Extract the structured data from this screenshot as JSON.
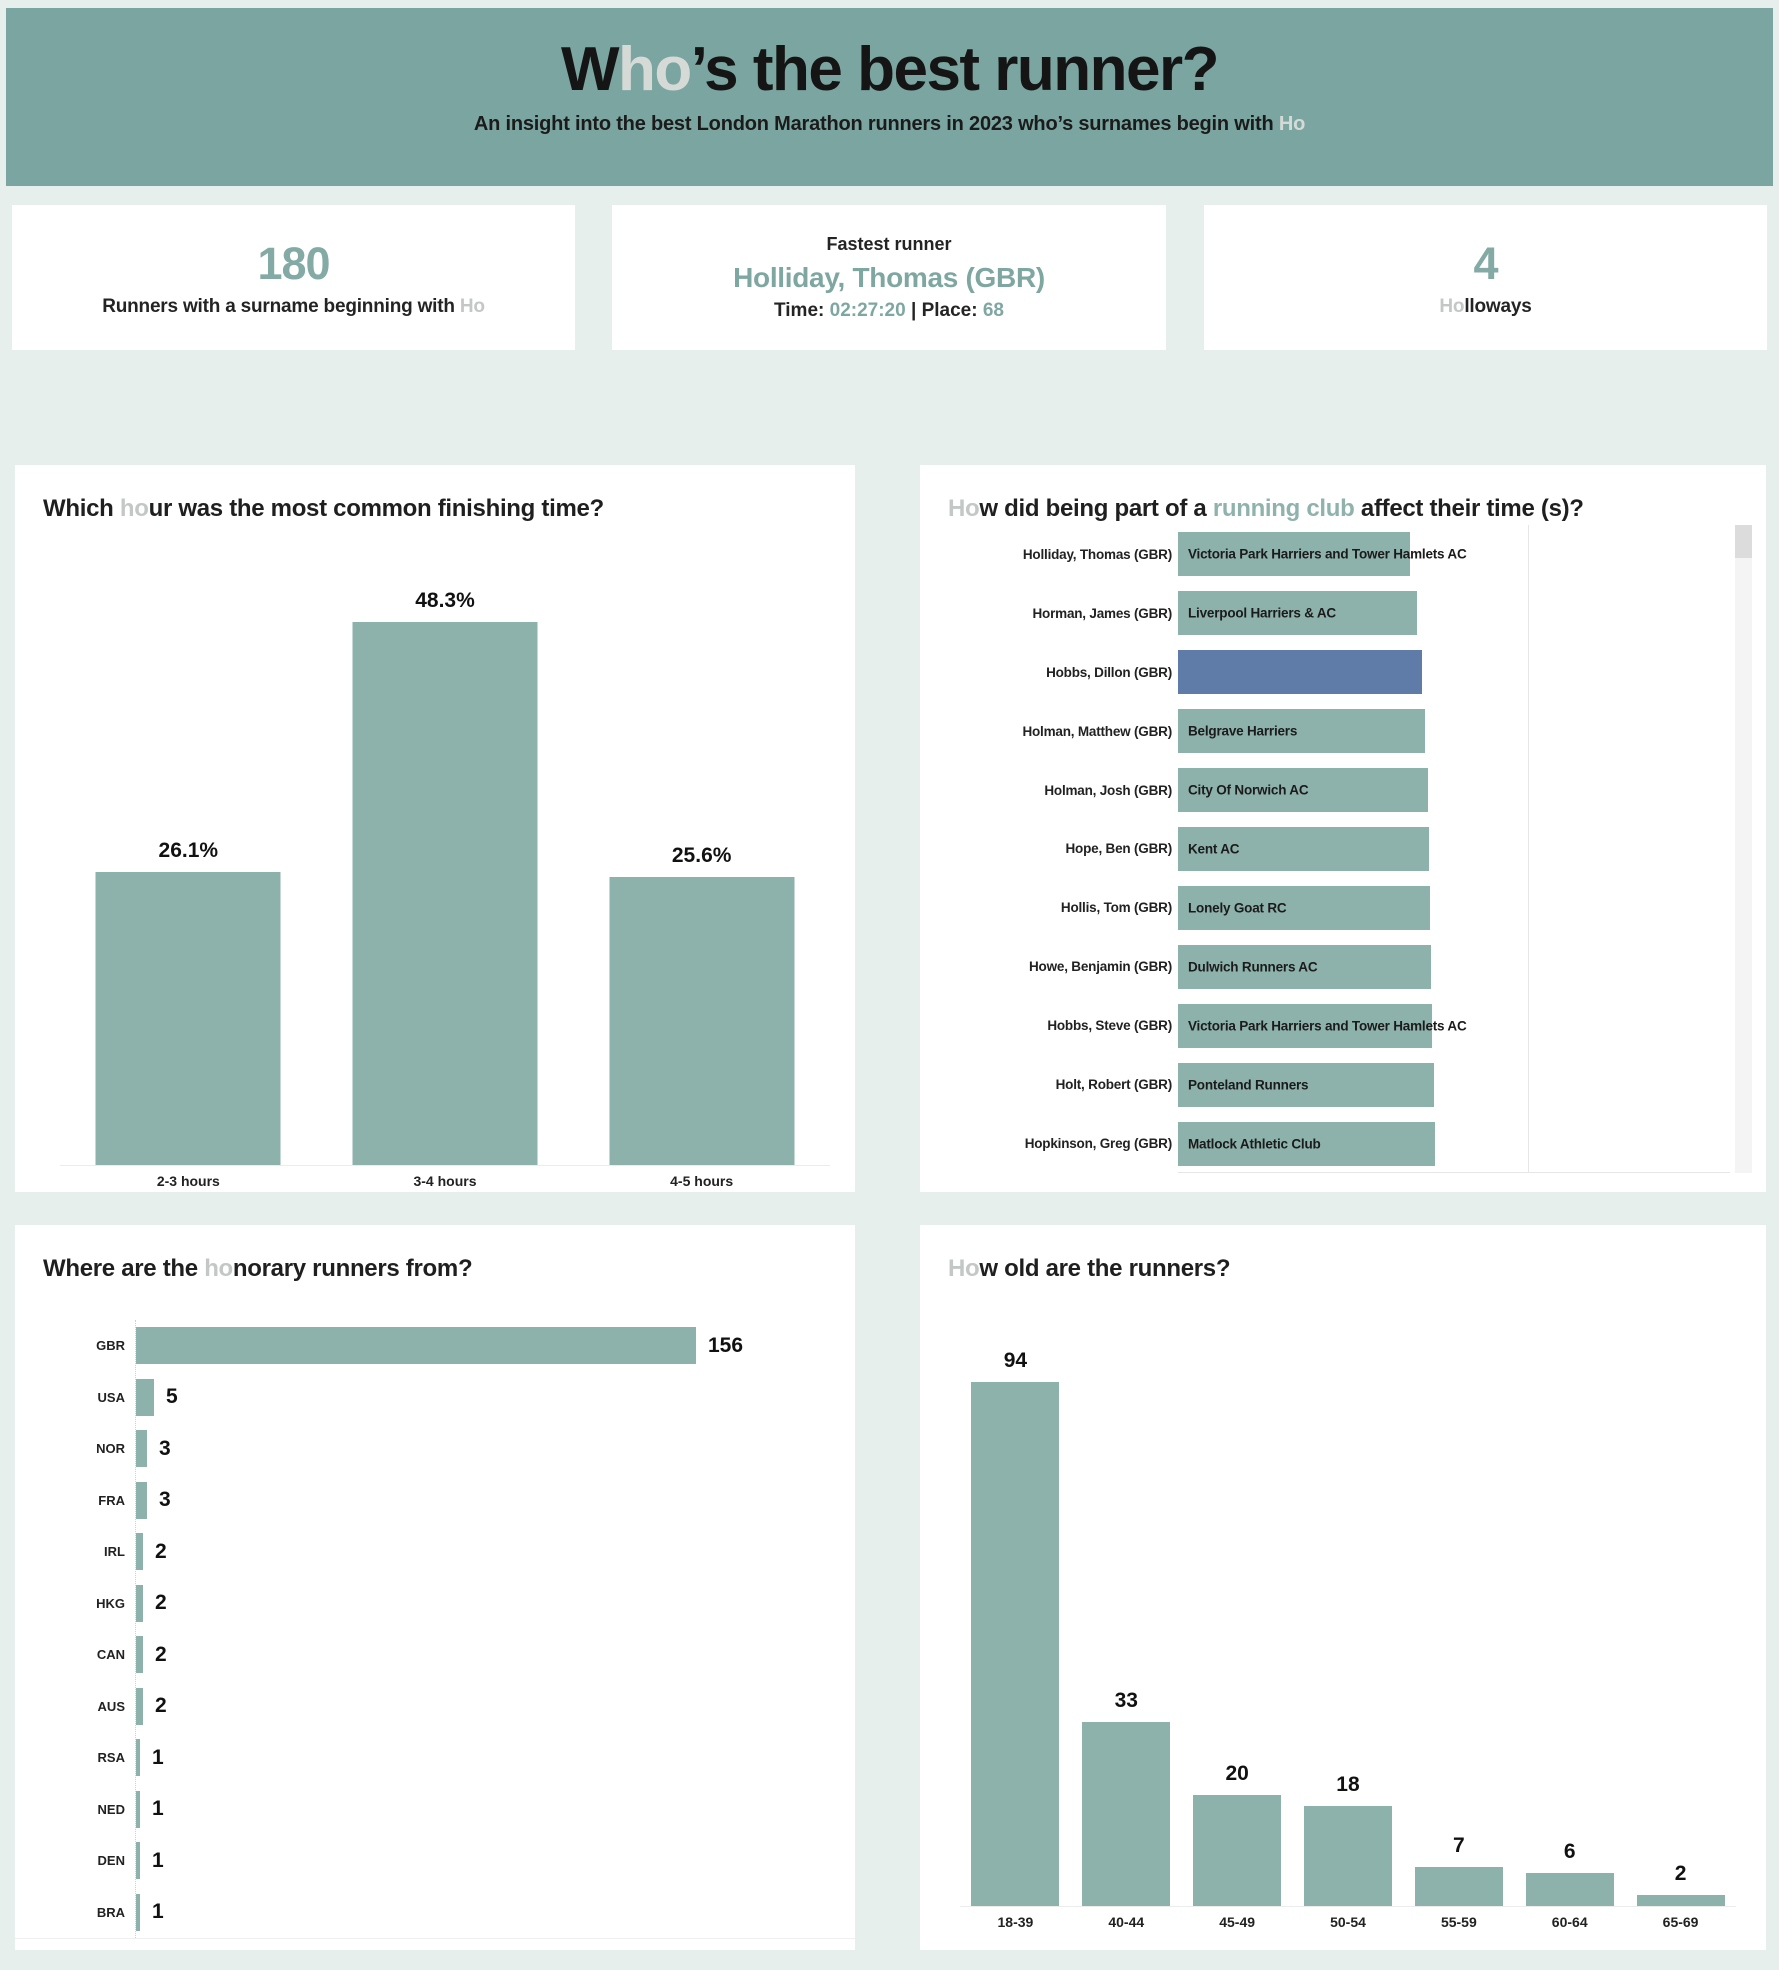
{
  "theme": {
    "page_bg": "#e7efec",
    "header_bg": "#7ba5a0",
    "panel_bg": "#ffffff",
    "bar_teal": "#8db2ab",
    "bar_blue": "#5f7ba7",
    "accent_teal": "#7fa7a1",
    "muted_gray": "#c3c8c6",
    "text_dark": "#1f1f1f"
  },
  "header": {
    "title_segments": [
      {
        "text": "W",
        "style": "dark"
      },
      {
        "text": "ho",
        "style": "light"
      },
      {
        "text": "’s the best runner?",
        "style": "dark"
      }
    ],
    "subtitle_segments": [
      {
        "text": "An insight into the best London Marathon runners in 2023 who’s surnames begin with ",
        "style": "dark"
      },
      {
        "text": "Ho",
        "style": "light"
      }
    ]
  },
  "stats": {
    "runners": {
      "value": "180",
      "label_segments": [
        {
          "text": "Runners with a surname beginning with ",
          "style": "dark"
        },
        {
          "text": "Ho",
          "style": "light"
        }
      ]
    },
    "fastest": {
      "title": "Fastest runner",
      "name": "Holliday, Thomas (GBR)",
      "time_label": "Time: ",
      "time_value": "02:27:20",
      "divider": " | ",
      "place_label": "Place: ",
      "place_value": "68"
    },
    "holloways": {
      "value": "4",
      "label_segments": [
        {
          "text": "Ho",
          "style": "light"
        },
        {
          "text": "lloways",
          "style": "dark"
        }
      ]
    }
  },
  "chart_data": [
    {
      "id": "finishing_time",
      "type": "bar",
      "title": "Which hour was the most common finishing time?",
      "title_segments": [
        {
          "text": "Which ",
          "style": "dark"
        },
        {
          "text": "ho",
          "style": "light"
        },
        {
          "text": "ur was the most common finishing time?",
          "style": "dark"
        }
      ],
      "categories": [
        "2-3 hours",
        "3-4 hours",
        "4-5 hours"
      ],
      "values": [
        26.1,
        48.3,
        25.6
      ],
      "value_labels": [
        "26.1%",
        "48.3%",
        "25.6%"
      ],
      "ylim": [
        0,
        50
      ],
      "grid": false,
      "legend": "none"
    },
    {
      "id": "running_club",
      "type": "bar",
      "orientation": "horizontal",
      "title": "How did being part of a running club affect their time (s)?",
      "title_segments": [
        {
          "text": "Ho",
          "style": "light"
        },
        {
          "text": "w did being part of a ",
          "style": "dark"
        },
        {
          "text": "running club",
          "style": "teal"
        },
        {
          "text": " affect their time (s)?",
          "style": "dark"
        }
      ],
      "x_axis_unit": "seconds",
      "rows": [
        {
          "runner": "Holliday, Thomas (GBR)",
          "club": "Victoria Park Harriers and Tower Hamlets AC",
          "bar_frac": 0.663,
          "color": "teal"
        },
        {
          "runner": "Horman, James (GBR)",
          "club": "Liverpool Harriers & AC",
          "bar_frac": 0.683,
          "color": "teal"
        },
        {
          "runner": "Hobbs, Dillon (GBR)",
          "club": "",
          "bar_frac": 0.698,
          "color": "blue"
        },
        {
          "runner": "Holman, Matthew (GBR)",
          "club": "Belgrave Harriers",
          "bar_frac": 0.706,
          "color": "teal"
        },
        {
          "runner": "Holman, Josh (GBR)",
          "club": "City Of Norwich AC",
          "bar_frac": 0.713,
          "color": "teal"
        },
        {
          "runner": "Hope, Ben (GBR)",
          "club": "Kent AC",
          "bar_frac": 0.717,
          "color": "teal"
        },
        {
          "runner": "Hollis, Tom (GBR)",
          "club": "Lonely Goat RC",
          "bar_frac": 0.721,
          "color": "teal"
        },
        {
          "runner": "Howe, Benjamin (GBR)",
          "club": "Dulwich Runners AC",
          "bar_frac": 0.724,
          "color": "teal"
        },
        {
          "runner": "Hobbs, Steve (GBR)",
          "club": "Victoria Park Harriers and Tower Hamlets AC",
          "bar_frac": 0.727,
          "color": "teal"
        },
        {
          "runner": "Holt, Robert (GBR)",
          "club": "Ponteland Runners",
          "bar_frac": 0.731,
          "color": "teal"
        },
        {
          "runner": "Hopkinson, Greg (GBR)",
          "club": "Matlock Athletic Club",
          "bar_frac": 0.735,
          "color": "teal"
        }
      ],
      "scrollbar": true,
      "grid": false,
      "legend": "none"
    },
    {
      "id": "countries",
      "type": "bar",
      "orientation": "horizontal",
      "title": "Where are the honorary runners from?",
      "title_segments": [
        {
          "text": "Where are the ",
          "style": "dark"
        },
        {
          "text": "ho",
          "style": "light"
        },
        {
          "text": "norary runners from?",
          "style": "dark"
        }
      ],
      "categories": [
        "GBR",
        "USA",
        "NOR",
        "FRA",
        "IRL",
        "HKG",
        "CAN",
        "AUS",
        "RSA",
        "NED",
        "DEN",
        "BRA"
      ],
      "values": [
        156,
        5,
        3,
        3,
        2,
        2,
        2,
        2,
        1,
        1,
        1,
        1
      ],
      "xlim": [
        0,
        156
      ],
      "grid": false,
      "legend": "none"
    },
    {
      "id": "ages",
      "type": "bar",
      "title": "How old are the runners?",
      "title_segments": [
        {
          "text": "Ho",
          "style": "light"
        },
        {
          "text": "w old are the runners?",
          "style": "dark"
        }
      ],
      "categories": [
        "18-39",
        "40-44",
        "45-49",
        "50-54",
        "55-59",
        "60-64",
        "65-69"
      ],
      "values": [
        94,
        33,
        20,
        18,
        7,
        6,
        2
      ],
      "ylim": [
        0,
        100
      ],
      "grid": false,
      "legend": "none"
    }
  ]
}
